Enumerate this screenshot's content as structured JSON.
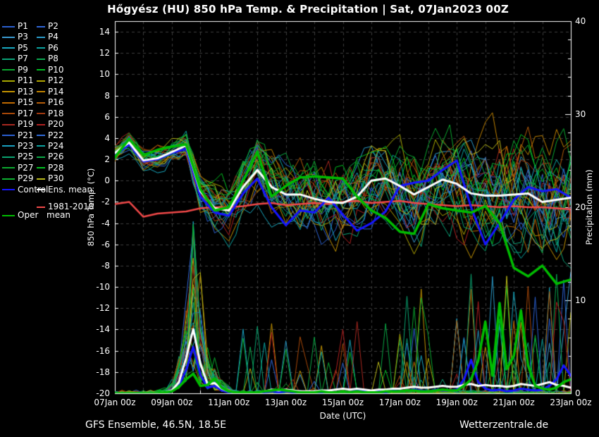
{
  "title": "Hőgyész  (HU)  850 hPa Temp. & Precipitation | Sat, 07Jan2023 00Z",
  "footer": {
    "left": "GFS Ensemble, 46.5N, 18.5E",
    "right": "Wetterzentrale.de"
  },
  "colors": {
    "background": "#000000",
    "foreground": "#ffffff",
    "grid": "#3d3d3d",
    "control": "#1515ff",
    "ens_mean": "#ffffff",
    "clim_mean": "#f04848",
    "oper": "#00bb00"
  },
  "legend": {
    "members": [
      {
        "label": "P1",
        "color": "#2a5fd0"
      },
      {
        "label": "P2",
        "color": "#2f66d8"
      },
      {
        "label": "P3",
        "color": "#3a9ad0"
      },
      {
        "label": "P4",
        "color": "#2a9ac8"
      },
      {
        "label": "P5",
        "color": "#18a8c0"
      },
      {
        "label": "P6",
        "color": "#0aa3a0"
      },
      {
        "label": "P7",
        "color": "#0aa378"
      },
      {
        "label": "P8",
        "color": "#0aa850"
      },
      {
        "label": "P9",
        "color": "#0ba82f"
      },
      {
        "label": "P10",
        "color": "#00bb22"
      },
      {
        "label": "P11",
        "color": "#a8a800"
      },
      {
        "label": "P12",
        "color": "#b0a400"
      },
      {
        "label": "P13",
        "color": "#c29200"
      },
      {
        "label": "P14",
        "color": "#c08200"
      },
      {
        "label": "P15",
        "color": "#c06a00"
      },
      {
        "label": "P16",
        "color": "#b45c08"
      },
      {
        "label": "P17",
        "color": "#a84808"
      },
      {
        "label": "P18",
        "color": "#a03810"
      },
      {
        "label": "P19",
        "color": "#a82820"
      },
      {
        "label": "P20",
        "color": "#b02020"
      },
      {
        "label": "P21",
        "color": "#2a5fd0"
      },
      {
        "label": "P22",
        "color": "#2f6ad8"
      },
      {
        "label": "P23",
        "color": "#18a0c0"
      },
      {
        "label": "P24",
        "color": "#0aa3a0"
      },
      {
        "label": "P25",
        "color": "#0aa370"
      },
      {
        "label": "P26",
        "color": "#0aa845"
      },
      {
        "label": "P27",
        "color": "#0ba82f"
      },
      {
        "label": "P28",
        "color": "#00c020"
      },
      {
        "label": "P29",
        "color": "#0db030"
      },
      {
        "label": "P30",
        "color": "#b8b818"
      }
    ],
    "control": {
      "label": "Control",
      "color": "#1515ff"
    },
    "ens_mean": {
      "label": "Ens. mean",
      "color": "#ffffff"
    },
    "clim": {
      "label_line1": "1981-2010",
      "label_line2": "mean",
      "color": "#f04848"
    },
    "oper": {
      "label": "Oper",
      "color": "#00bb00"
    }
  },
  "chart_data": {
    "type": "line",
    "title": "Hőgyész (HU) 850 hPa Temp. & Precipitation | Sat, 07Jan2023 00Z",
    "x_axis": {
      "label": "Date (UTC)",
      "tick_labels": [
        "07Jan 00z",
        "09Jan 00z",
        "11Jan 00z",
        "13Jan 00z",
        "15Jan 00z",
        "17Jan 00z",
        "19Jan 00z",
        "21Jan 00z",
        "23Jan 00z"
      ],
      "total_hours": 384,
      "days_total": 16,
      "gridlines": "daily",
      "grid_style": "dashed"
    },
    "y_left": {
      "label": "850 hPa Temp. (°C)",
      "min": -20,
      "max": 15,
      "tick_min": -20,
      "tick_max": 14,
      "tick_step": 2
    },
    "y_right": {
      "label": "Precipitation (mm)",
      "min": 0,
      "max": 40,
      "major_step": 10,
      "minor_step": 2
    },
    "temp_series": [
      {
        "name": "Ens. mean",
        "color": "#ffffff",
        "width": 3,
        "step_h": 12,
        "values": [
          2.6,
          3.6,
          1.9,
          2.1,
          2.7,
          3.3,
          -1.0,
          -2.6,
          -2.8,
          -0.6,
          1.0,
          -0.6,
          -1.3,
          -1.3,
          -1.7,
          -2.0,
          -2.1,
          -1.5,
          0.0,
          0.2,
          -0.5,
          -1.3,
          -0.6,
          0.1,
          -0.3,
          -1.2,
          -1.4,
          -1.4,
          -1.3,
          -1.2,
          -2.0,
          -1.8,
          -1.6
        ]
      },
      {
        "name": "Control",
        "color": "#1515ff",
        "width": 3,
        "step_h": 12,
        "values": [
          2.4,
          3.4,
          1.8,
          2.0,
          2.6,
          3.0,
          -1.5,
          -3.0,
          -3.3,
          -1.2,
          0.2,
          -2.5,
          -4.2,
          -2.8,
          -3.0,
          -1.6,
          -3.2,
          -4.7,
          -4.0,
          -2.9,
          -0.5,
          -0.2,
          0.0,
          1.0,
          1.9,
          -2.5,
          -6.0,
          -4.0,
          -1.8,
          -0.6,
          -1.0,
          -0.8,
          -1.6
        ]
      },
      {
        "name": "Oper",
        "color": "#00bb00",
        "width": 3.5,
        "step_h": 12,
        "values": [
          2.2,
          3.9,
          2.4,
          2.9,
          3.2,
          3.4,
          -0.8,
          -2.8,
          -2.5,
          0.0,
          2.7,
          -1.5,
          -0.5,
          0.3,
          0.4,
          0.3,
          0.2,
          -1.5,
          -2.8,
          -3.5,
          -4.8,
          -5.0,
          -2.2,
          -2.6,
          -2.8,
          -3.0,
          -2.4,
          -4.0,
          -8.2,
          -9.0,
          -8.0,
          -9.7,
          -9.3
        ]
      },
      {
        "name": "1981-2010 mean",
        "color": "#f04848",
        "width": 2.5,
        "step_h": 12,
        "values": [
          -2.2,
          -2.0,
          -3.4,
          -3.1,
          -3.0,
          -2.9,
          -2.6,
          -2.5,
          -2.5,
          -2.4,
          -2.2,
          -2.1,
          -2.3,
          -2.2,
          -2.1,
          -2.2,
          -2.0,
          -1.9,
          -2.1,
          -2.0,
          -1.9,
          -2.1,
          -2.2,
          -2.3,
          -2.4,
          -2.3,
          -2.4,
          -2.5,
          -2.4,
          -2.5,
          -2.5,
          -2.6,
          -2.7
        ]
      }
    ],
    "precip_series": [
      {
        "name": "Ens. mean",
        "color": "#ffffff",
        "width": 3,
        "step_h": 6,
        "values": [
          0,
          0,
          0,
          0,
          0,
          0,
          0,
          0.1,
          0.3,
          1.2,
          3.8,
          6.9,
          3.2,
          1.0,
          1.1,
          0.5,
          0.2,
          0.1,
          0.1,
          0.1,
          0.1,
          0.2,
          0.4,
          0.3,
          0.4,
          0.3,
          0.2,
          0.2,
          0.2,
          0.3,
          0.3,
          0.4,
          0.5,
          0.4,
          0.5,
          0.4,
          0.3,
          0.4,
          0.4,
          0.5,
          0.5,
          0.6,
          0.7,
          0.6,
          0.6,
          0.7,
          0.8,
          0.7,
          0.7,
          0.9,
          1.0,
          0.8,
          0.9,
          0.8,
          0.8,
          0.7,
          0.8,
          1.0,
          0.9,
          0.8,
          1.0,
          1.2,
          0.9,
          0.8,
          0.6
        ]
      },
      {
        "name": "Control",
        "color": "#1515ff",
        "width": 3,
        "step_h": 6,
        "values": [
          0,
          0,
          0,
          0,
          0,
          0,
          0,
          0,
          0.2,
          0.8,
          2.5,
          5.0,
          2.0,
          0.6,
          0.8,
          0.3,
          0.1,
          0.1,
          0,
          0.1,
          0,
          0.1,
          0.2,
          0.1,
          0.2,
          0.1,
          0.1,
          0,
          0.1,
          0.1,
          0.2,
          0.1,
          0.2,
          0.1,
          0.3,
          0.2,
          0.1,
          0.2,
          0.1,
          0.3,
          0.2,
          0.3,
          0.4,
          0.3,
          0.2,
          0.4,
          0.3,
          0.3,
          0.4,
          1.5,
          3.6,
          1.2,
          0.5,
          0.3,
          0.4,
          0.2,
          0.3,
          0.5,
          0.4,
          0.3,
          0.4,
          0.8,
          1.5,
          3.0,
          1.9
        ]
      },
      {
        "name": "Oper",
        "color": "#00bb00",
        "width": 3.5,
        "step_h": 6,
        "values": [
          0,
          0,
          0,
          0,
          0,
          0,
          0,
          0.1,
          0.2,
          0.7,
          1.5,
          2.1,
          0.8,
          0.9,
          1.6,
          0.6,
          0.2,
          0.1,
          0.1,
          0.1,
          0.1,
          0.2,
          0.3,
          0.4,
          0.3,
          0.2,
          0.1,
          0.1,
          0.1,
          0.2,
          0.1,
          0.1,
          0.2,
          0.1,
          0.2,
          0.1,
          0.1,
          0.1,
          0.2,
          0.2,
          0.2,
          0.3,
          0.3,
          0.2,
          0.2,
          0.3,
          0.4,
          0.3,
          0.3,
          0.8,
          1.5,
          3.5,
          7.7,
          1.9,
          9.7,
          2.6,
          4.0,
          8.9,
          3.0,
          0.8,
          0.5,
          0.4,
          0.6,
          1.2,
          1.5
        ]
      }
    ],
    "ensemble": {
      "count": 30,
      "seed": 20230107,
      "step_h": 6,
      "line_width": 1,
      "temp_spread_12h": [
        0.7,
        0.7,
        0.9,
        0.9,
        0.9,
        1.0,
        1.8,
        2.2,
        2.4,
        2.6,
        2.8,
        3.0,
        3.0,
        3.2,
        3.2,
        3.4,
        3.5,
        3.6,
        3.6,
        3.8,
        3.8,
        4.0,
        4.0,
        4.2,
        4.4,
        4.4,
        4.6,
        4.6,
        4.8,
        4.8,
        5.0,
        5.0,
        5.0
      ],
      "precip_event": {
        "start_index": 7,
        "envelope": [
          0.2,
          0.6,
          2.2,
          6.0,
          10.0,
          5.0,
          2.2,
          1.6,
          0.8,
          0.3
        ]
      },
      "mid_window": {
        "start_index": 18,
        "end_index": 38,
        "spike_prob": 0.05,
        "max_mm": 8
      },
      "late_window": {
        "start_index": 38,
        "spike_prob": 0.09,
        "max_mm": 12
      },
      "precip_cap_mm": 29.6
    }
  }
}
